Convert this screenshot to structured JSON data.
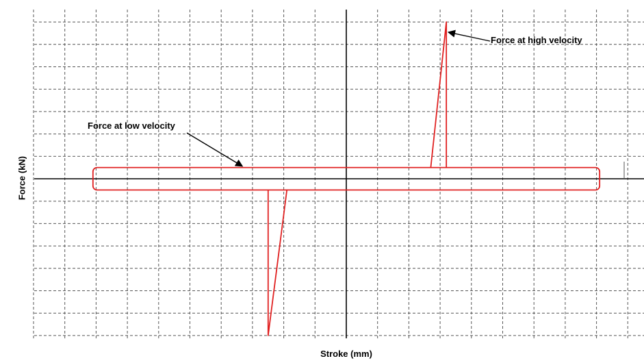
{
  "chart_data": {
    "type": "line",
    "title": "",
    "xlabel": "Stroke (mm)",
    "ylabel": "Force (kN)",
    "grid": true,
    "xlim": [
      -10,
      9
    ],
    "ylim": [
      -7,
      7
    ],
    "series": [
      {
        "name": "",
        "color": "#e02020",
        "x": [
          -8.1,
          8.1,
          8.1,
          -8.1,
          -8.1
        ],
        "y": [
          -0.5,
          -0.5,
          0.5,
          0.5,
          -0.5
        ]
      },
      {
        "name": "",
        "color": "#e02020",
        "x": [
          2.7,
          3.2,
          3.2
        ],
        "y": [
          0.5,
          7.0,
          0.5
        ]
      },
      {
        "name": "",
        "color": "#e02020",
        "x": [
          -1.9,
          -2.5,
          -2.5
        ],
        "y": [
          -0.5,
          -7.0,
          -0.5
        ]
      }
    ],
    "annotations": [
      {
        "text": "Force at high velocity",
        "x": 3.2,
        "y": 7.0
      },
      {
        "text": "Force at low velocity",
        "x": -3.5,
        "y": 0.5
      }
    ]
  }
}
